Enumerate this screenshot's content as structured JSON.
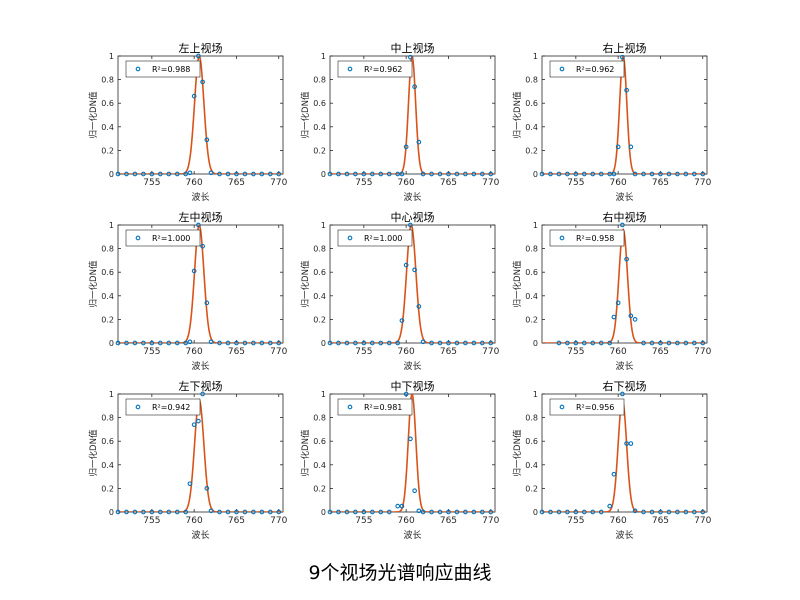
{
  "caption": "9个视场光谱响应曲线",
  "colors": {
    "fit_line": "#d95319",
    "markers": "#0072bd",
    "axis": "#262626"
  },
  "chart_data": [
    {
      "type": "scatter",
      "title": "左上视场",
      "xlabel": "波长",
      "ylabel": "归一化DN值",
      "xlim": [
        751,
        770.5
      ],
      "ylim": [
        0,
        1
      ],
      "xticks": [
        755,
        760,
        765,
        770
      ],
      "yticks": [
        0,
        0.2,
        0.4,
        0.6,
        0.8,
        1
      ],
      "legend": {
        "location": "top-left",
        "text": "R²=0.988",
        "r2": 0.988
      },
      "fit": {
        "center": 760.6,
        "sigma": 0.55,
        "amplitude": 1.0
      },
      "x": [
        751,
        752,
        753,
        754,
        755,
        756,
        757,
        758,
        759,
        759.5,
        760,
        760.5,
        761,
        761.5,
        762,
        763,
        764,
        765,
        766,
        767,
        768,
        769,
        770
      ],
      "y": [
        0,
        0,
        0,
        0,
        0,
        0,
        0,
        0,
        0,
        0.01,
        0.66,
        1.0,
        0.78,
        0.29,
        0.01,
        0,
        0,
        0,
        0,
        0,
        0,
        0,
        0
      ],
      "grid": false
    },
    {
      "type": "scatter",
      "title": "中上视场",
      "xlabel": "波长",
      "ylabel": "归一化DN值",
      "xlim": [
        751,
        770.5
      ],
      "ylim": [
        0,
        1
      ],
      "xticks": [
        755,
        760,
        765,
        770
      ],
      "yticks": [
        0,
        0.2,
        0.4,
        0.6,
        0.8,
        1
      ],
      "legend": {
        "location": "top-left",
        "text": "R²=0.962",
        "r2": 0.962
      },
      "fit": {
        "center": 760.7,
        "sigma": 0.42,
        "amplitude": 1.0
      },
      "x": [
        751,
        752,
        753,
        754,
        755,
        756,
        757,
        758,
        759,
        759.5,
        760,
        760.5,
        761,
        761.5,
        762,
        763,
        764,
        765,
        766,
        767,
        768,
        769,
        770
      ],
      "y": [
        0,
        0,
        0,
        0,
        0,
        0,
        0,
        0,
        0,
        0,
        0.23,
        0.99,
        0.74,
        0.27,
        0,
        0,
        0,
        0,
        0,
        0,
        0,
        0,
        0
      ],
      "grid": false
    },
    {
      "type": "scatter",
      "title": "右上视场",
      "xlabel": "波长",
      "ylabel": "归一化DN值",
      "xlim": [
        751,
        770.5
      ],
      "ylim": [
        0,
        1
      ],
      "xticks": [
        755,
        760,
        765,
        770
      ],
      "yticks": [
        0,
        0.2,
        0.4,
        0.6,
        0.8,
        1
      ],
      "legend": {
        "location": "top-left",
        "text": "R²=0.962",
        "r2": 0.962
      },
      "fit": {
        "center": 760.6,
        "sigma": 0.42,
        "amplitude": 1.0
      },
      "x": [
        751,
        752,
        753,
        754,
        755,
        756,
        757,
        758,
        759,
        759.5,
        760,
        760.5,
        761,
        761.5,
        762,
        763,
        764,
        765,
        766,
        767,
        768,
        769,
        770
      ],
      "y": [
        0,
        0,
        0,
        0,
        0,
        0,
        0,
        0,
        0,
        0,
        0.23,
        0.99,
        0.71,
        0.23,
        0,
        0,
        0,
        0,
        0,
        0,
        0,
        0,
        0
      ],
      "grid": false
    },
    {
      "type": "scatter",
      "title": "左中视场",
      "xlabel": "波长",
      "ylabel": "归一化DN值",
      "xlim": [
        751,
        770.5
      ],
      "ylim": [
        0,
        1
      ],
      "xticks": [
        755,
        760,
        765,
        770
      ],
      "yticks": [
        0,
        0.2,
        0.4,
        0.6,
        0.8,
        1
      ],
      "legend": {
        "location": "top-left",
        "text": "R²=1.000",
        "r2": 1.0
      },
      "fit": {
        "center": 760.6,
        "sigma": 0.55,
        "amplitude": 1.0
      },
      "x": [
        751,
        752,
        753,
        754,
        755,
        756,
        757,
        758,
        759,
        759.5,
        760,
        760.5,
        761,
        761.5,
        762,
        763,
        764,
        765,
        766,
        767,
        768,
        769,
        770
      ],
      "y": [
        0,
        0,
        0,
        0,
        0,
        0,
        0,
        0,
        0,
        0.01,
        0.61,
        1.0,
        0.82,
        0.34,
        0.01,
        0,
        0,
        0,
        0,
        0,
        0,
        0,
        0
      ],
      "grid": false
    },
    {
      "type": "scatter",
      "title": "中心视场",
      "xlabel": "波长",
      "ylabel": "归一化DN值",
      "xlim": [
        751,
        770.5
      ],
      "ylim": [
        0,
        1
      ],
      "xticks": [
        755,
        760,
        765,
        770
      ],
      "yticks": [
        0,
        0.2,
        0.4,
        0.6,
        0.8,
        1
      ],
      "legend": {
        "location": "top-left",
        "text": "R²=1.000",
        "r2": 1.0
      },
      "fit": {
        "center": 760.6,
        "sigma": 0.55,
        "amplitude": 1.0
      },
      "x": [
        751,
        752,
        753,
        754,
        755,
        756,
        757,
        758,
        759,
        759.5,
        760,
        760.5,
        761,
        761.5,
        762,
        763,
        764,
        765,
        766,
        767,
        768,
        769,
        770
      ],
      "y": [
        0,
        0,
        0,
        0,
        0,
        0,
        0,
        0,
        0,
        0.19,
        0.66,
        1.0,
        0.62,
        0.31,
        0.01,
        0,
        0,
        0,
        0,
        0,
        0,
        0,
        0
      ],
      "grid": false
    },
    {
      "type": "scatter",
      "title": "右中视场",
      "xlabel": "波长",
      "ylabel": "归一化DN值",
      "xlim": [
        751,
        770.5
      ],
      "ylim": [
        0,
        1
      ],
      "xticks": [
        755,
        760,
        765,
        770
      ],
      "yticks": [
        0,
        0.2,
        0.4,
        0.6,
        0.8,
        1
      ],
      "legend": {
        "location": "top-left",
        "text": "R²=0.958",
        "r2": 0.958
      },
      "fit": {
        "center": 760.6,
        "sigma": 0.5,
        "amplitude": 0.96
      },
      "x": [
        753,
        754,
        755,
        756,
        757,
        758,
        759,
        759.5,
        760,
        760.5,
        761,
        761.5,
        762,
        763,
        764,
        765,
        766,
        767,
        768,
        769,
        770
      ],
      "y": [
        0,
        0,
        0,
        0,
        0,
        0,
        0,
        0.22,
        0.34,
        1.0,
        0.71,
        0.23,
        0.2,
        0,
        0,
        0,
        0,
        0,
        0,
        0,
        0
      ],
      "grid": false
    },
    {
      "type": "scatter",
      "title": "左下视场",
      "xlabel": "波长",
      "ylabel": "归一化DN值",
      "xlim": [
        751,
        770.5
      ],
      "ylim": [
        0,
        1
      ],
      "xticks": [
        755,
        760,
        765,
        770
      ],
      "yticks": [
        0,
        0.2,
        0.4,
        0.6,
        0.8,
        1
      ],
      "legend": {
        "location": "top-left",
        "text": "R²=0.942",
        "r2": 0.942
      },
      "fit": {
        "center": 760.6,
        "sigma": 0.55,
        "amplitude": 0.95
      },
      "x": [
        751,
        752,
        753,
        754,
        755,
        756,
        757,
        758,
        759,
        759.5,
        760,
        760.5,
        761,
        761.5,
        762,
        763,
        764,
        765,
        766,
        767,
        768,
        769,
        770
      ],
      "y": [
        0,
        0,
        0,
        0,
        0,
        0,
        0,
        0,
        0,
        0.24,
        0.74,
        0.77,
        1.0,
        0.2,
        0.01,
        0,
        0,
        0,
        0,
        0,
        0,
        0,
        0
      ],
      "grid": false
    },
    {
      "type": "scatter",
      "title": "中下视场",
      "xlabel": "波长",
      "ylabel": "归一化DN值",
      "xlim": [
        751,
        770.5
      ],
      "ylim": [
        0,
        1
      ],
      "xticks": [
        755,
        760,
        765,
        770
      ],
      "yticks": [
        0,
        0.2,
        0.4,
        0.6,
        0.8,
        1
      ],
      "legend": {
        "location": "top-left",
        "text": "R²=0.981",
        "r2": 0.981
      },
      "fit": {
        "center": 760.7,
        "sigma": 0.45,
        "amplitude": 1.0
      },
      "x": [
        751,
        752,
        753,
        754,
        755,
        756,
        757,
        758,
        759,
        759.5,
        760,
        760.5,
        761,
        761.5,
        762,
        763,
        764,
        765,
        766,
        767,
        768,
        769,
        770
      ],
      "y": [
        0,
        0,
        0,
        0,
        0,
        0,
        0,
        0,
        0.05,
        0.05,
        1.0,
        0.62,
        0.18,
        0.01,
        0,
        0,
        0,
        0,
        0,
        0,
        0,
        0,
        0
      ],
      "grid": false
    },
    {
      "type": "scatter",
      "title": "右下视场",
      "xlabel": "波长",
      "ylabel": "归一化DN值",
      "xlim": [
        751,
        770.5
      ],
      "ylim": [
        0,
        1
      ],
      "xticks": [
        755,
        760,
        765,
        770
      ],
      "yticks": [
        0,
        0.2,
        0.4,
        0.6,
        0.8,
        1
      ],
      "legend": {
        "location": "top-left",
        "text": "R²=0.956",
        "r2": 0.956
      },
      "fit": {
        "center": 760.5,
        "sigma": 0.5,
        "amplitude": 0.95
      },
      "x": [
        751,
        752,
        753,
        754,
        755,
        756,
        757,
        758,
        759,
        759.5,
        760,
        760.5,
        761,
        761.5,
        762,
        763,
        764,
        765,
        766,
        767,
        768,
        769,
        770
      ],
      "y": [
        0,
        0,
        0,
        0,
        0,
        0,
        0,
        0,
        0.05,
        0.32,
        0.86,
        1.0,
        0.58,
        0.58,
        0.01,
        0,
        0,
        0,
        0,
        0,
        0,
        0,
        0
      ],
      "grid": false
    }
  ]
}
